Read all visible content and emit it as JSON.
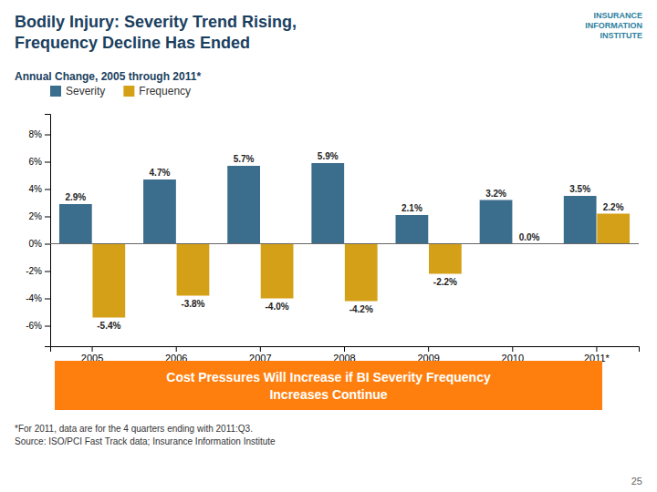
{
  "chart_data": {
    "type": "bar",
    "title": "Bodily Injury: Severity Trend Rising,\nFrequency Decline Has Ended",
    "subtitle": "Annual Change, 2005 through 2011*",
    "categories": [
      "2005",
      "2006",
      "2007",
      "2008",
      "2009",
      "2010",
      "2011*"
    ],
    "series": [
      {
        "name": "Severity",
        "color": "#3B6D8C",
        "values": [
          2.9,
          4.7,
          5.7,
          5.9,
          2.1,
          3.2,
          3.5
        ],
        "value_labels": [
          "2.9%",
          "4.7%",
          "5.7%",
          "5.9%",
          "2.1%",
          "3.2%",
          "3.5%"
        ]
      },
      {
        "name": "Frequency",
        "color": "#D4A017",
        "values": [
          -5.4,
          -3.8,
          -4.0,
          -4.2,
          -2.2,
          0.0,
          2.2
        ],
        "value_labels": [
          "-5.4%",
          "-3.8%",
          "-4.0%",
          "-4.2%",
          "-2.2%",
          "0.0%",
          "2.2%"
        ]
      }
    ],
    "ylim": [
      -7.5,
      9.5
    ],
    "yticks": [
      {
        "value": -6,
        "label": "-6%"
      },
      {
        "value": -4,
        "label": "-4%"
      },
      {
        "value": -2,
        "label": "-2%"
      },
      {
        "value": 0,
        "label": "0%"
      },
      {
        "value": 2,
        "label": "2%"
      },
      {
        "value": 4,
        "label": "4%"
      },
      {
        "value": 6,
        "label": "6%"
      },
      {
        "value": 8,
        "label": "8%"
      }
    ],
    "grid": false,
    "legend": "upper left",
    "data_labels": true,
    "annotations": [
      "Cost Pressures Will Increase if BI Severity Frequency\nIncreases Continue",
      "*For 2011, data are for the 4 quarters ending with 2011:Q3.",
      "Source: ISO/PCI Fast Track data; Insurance Information Institute",
      "25",
      "INSURANCE",
      "INFORMATION",
      "INSTITUTE"
    ]
  }
}
